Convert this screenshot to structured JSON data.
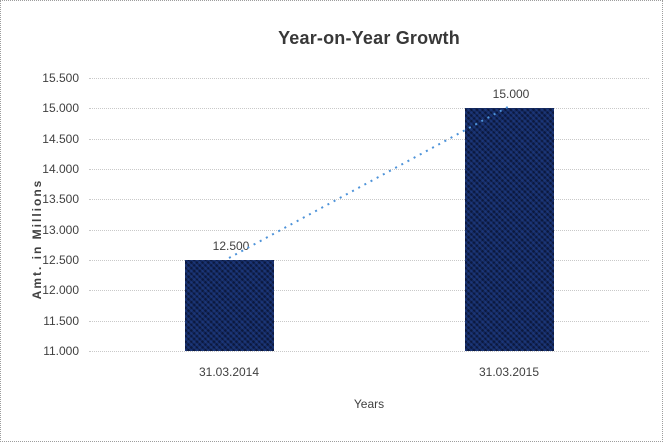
{
  "chart_data": {
    "type": "bar",
    "title": "Year-on-Year Growth",
    "categories": [
      "31.03.2014",
      "31.03.2015"
    ],
    "values": [
      12.5,
      15.0
    ],
    "value_labels": [
      "12.500",
      "15.000"
    ],
    "xlabel": "Years",
    "ylabel": "Amt. in Millions",
    "ylim": [
      11.0,
      15.5
    ],
    "ytick_step": 0.5,
    "ytick_labels": [
      "11.000",
      "11.500",
      "12.000",
      "12.500",
      "13.000",
      "13.500",
      "14.000",
      "14.500",
      "15.000",
      "15.500"
    ],
    "grid": "horizontal-dotted",
    "legend": "none",
    "trendline": {
      "style": "dotted",
      "connects_tops_of_bars": [
        "31.03.2014",
        "31.03.2015"
      ]
    },
    "colors": {
      "bar": "#13265a",
      "trendline": "#4e93d9",
      "gridline": "#c9c9c9",
      "text": "#404040",
      "title_text": "#383838"
    }
  }
}
